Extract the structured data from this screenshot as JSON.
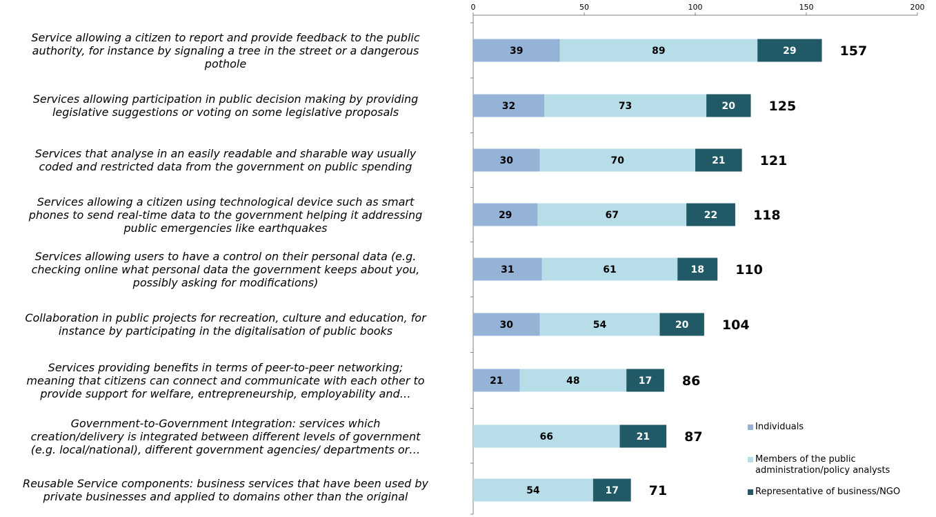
{
  "chart_data": {
    "type": "bar",
    "orientation": "horizontal",
    "stacked": true,
    "xlim": [
      0,
      200
    ],
    "x_ticks": [
      0,
      50,
      100,
      150,
      200
    ],
    "x_tick_labels": [
      "0",
      "50",
      "100",
      "150",
      "200"
    ],
    "x_axis_position": "top",
    "grid": false,
    "legend_position": "bottom-right",
    "categories": [
      "Service allowing a citizen to report and provide feedback to the public authority, for instance by signaling a tree in the street or a dangerous pothole",
      "Services allowing participation in public decision making by providing legislative suggestions or voting on some legislative proposals",
      "Services that analyse in an easily readable and sharable way usually coded and restricted data from the government on public spending",
      "Services allowing a citizen using technological device such as smart phones to send real-time data to the government helping it addressing public emergencies like earthquakes",
      "Services allowing users to have a control on their personal data (e.g. checking online what personal data the government keeps about you, possibly asking for modifications)",
      "Collaboration in public projects for recreation, culture and education, for instance by participating in the digitalisation of public books",
      "Services providing benefits in terms of peer-to-peer networking; meaning that citizens can connect and communicate with each other to provide support for welfare, entrepreneurship, employability and…",
      "Government-to-Government Integration: services which creation/delivery is integrated between different levels of government (e.g. local/national), different government agencies/ departments or…",
      "Reusable Service components: business services that have been used by private businesses and applied to domains other than the original"
    ],
    "category_lines": [
      [
        "Service allowing a citizen to report and provide feedback to the public",
        "authority, for instance by signaling a tree in the street or a dangerous",
        "pothole"
      ],
      [
        "Services allowing participation in public decision making by providing",
        "legislative suggestions or voting on some legislative proposals"
      ],
      [
        "Services that analyse in an easily readable and sharable way usually",
        "coded and restricted data from the government on public spending"
      ],
      [
        "Services allowing a citizen using technological device such as smart",
        "phones to send real-time data to the government helping it addressing",
        "public emergencies like earthquakes"
      ],
      [
        "Services allowing users to have a control on their personal data (e.g.",
        "checking online what personal data the government keeps about you,",
        "possibly asking for modifications)"
      ],
      [
        "Collaboration in public projects for recreation, culture and education, for",
        "instance by participating in the digitalisation of public books"
      ],
      [
        "Services providing benefits in terms of peer-to-peer networking;",
        "meaning that citizens can connect and communicate with each other to",
        "provide support for welfare, entrepreneurship, employability and…"
      ],
      [
        "Government-to-Government Integration: services which",
        "creation/delivery is integrated between different levels of government",
        "(e.g. local/national), different government agencies/ departments or…"
      ],
      [
        "Reusable Service components: business services that have been used by",
        "private businesses and applied to domains other than the original"
      ]
    ],
    "series": [
      {
        "name": "Individuals",
        "color": "#95b3d7",
        "values": [
          39,
          32,
          30,
          29,
          31,
          30,
          21,
          null,
          null
        ]
      },
      {
        "name": "Members of the public administration/policy analysts",
        "color": "#b7dee8",
        "values": [
          89,
          73,
          70,
          67,
          61,
          54,
          48,
          66,
          54
        ]
      },
      {
        "name": "Representative of business/NGO",
        "color": "#215967",
        "values": [
          29,
          20,
          21,
          22,
          18,
          20,
          17,
          21,
          17
        ]
      }
    ],
    "totals": [
      157,
      125,
      121,
      118,
      110,
      104,
      86,
      87,
      71
    ],
    "legend_lines": [
      [
        "Individuals"
      ],
      [
        "Members of the public",
        "administration/policy analysts"
      ],
      [
        "Representative of business/NGO"
      ]
    ]
  }
}
